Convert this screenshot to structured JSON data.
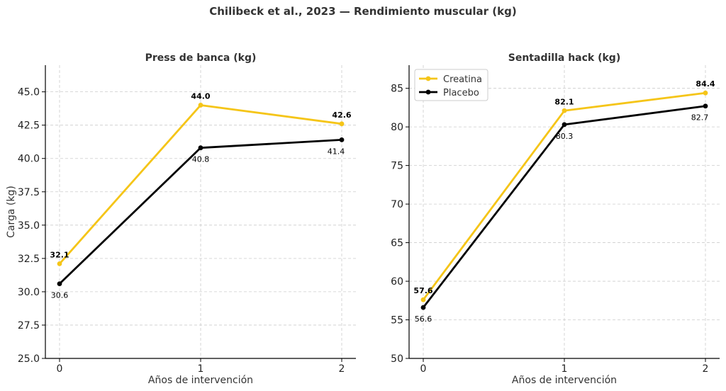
{
  "suptitle": "Chilibeck et al., 2023 — Rendimiento muscular (kg)",
  "colors": {
    "creatina": "#f5c518",
    "placebo": "#000000",
    "grid": "#cccccc",
    "axis": "#000000"
  },
  "chart_data": [
    {
      "type": "line",
      "title": "Press de banca (kg)",
      "xlabel": "Años de intervención",
      "ylabel": "Carga (kg)",
      "x": [
        0,
        1,
        2
      ],
      "xticks": [
        "0",
        "1",
        "2"
      ],
      "ylim": [
        25,
        47
      ],
      "yticks": [
        25.0,
        27.5,
        30.0,
        32.5,
        35.0,
        37.5,
        40.0,
        42.5,
        45.0
      ],
      "ytick_labels": [
        "25.0",
        "27.5",
        "30.0",
        "32.5",
        "35.0",
        "37.5",
        "40.0",
        "42.5",
        "45.0"
      ],
      "grid": true,
      "legend": false,
      "series": [
        {
          "name": "Creatina",
          "values": [
            32.1,
            44.0,
            42.6
          ],
          "labels": [
            "32.1",
            "44.0",
            "42.6"
          ],
          "color": "#f5c518"
        },
        {
          "name": "Placebo",
          "values": [
            30.6,
            40.8,
            41.4
          ],
          "labels": [
            "30.6",
            "40.8",
            "41.4"
          ],
          "color": "#000000"
        }
      ]
    },
    {
      "type": "line",
      "title": "Sentadilla hack (kg)",
      "xlabel": "Años de intervención",
      "ylabel": "",
      "x": [
        0,
        1,
        2
      ],
      "xticks": [
        "0",
        "1",
        "2"
      ],
      "ylim": [
        50,
        88
      ],
      "yticks": [
        50,
        55,
        60,
        65,
        70,
        75,
        80,
        85
      ],
      "ytick_labels": [
        "50",
        "55",
        "60",
        "65",
        "70",
        "75",
        "80",
        "85"
      ],
      "grid": true,
      "legend": true,
      "legend_position": "top-left",
      "series": [
        {
          "name": "Creatina",
          "values": [
            57.6,
            82.1,
            84.4
          ],
          "labels": [
            "57.6",
            "82.1",
            "84.4"
          ],
          "color": "#f5c518"
        },
        {
          "name": "Placebo",
          "values": [
            56.6,
            80.3,
            82.7
          ],
          "labels": [
            "56.6",
            "80.3",
            "82.7"
          ],
          "color": "#000000"
        }
      ]
    }
  ]
}
